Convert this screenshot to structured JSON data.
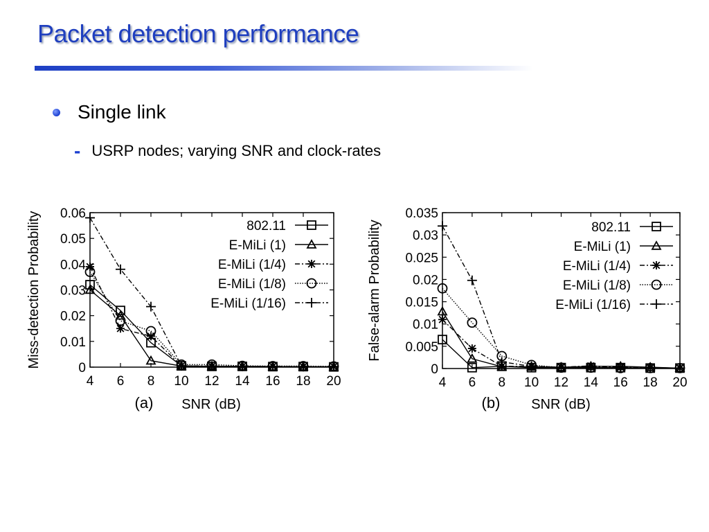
{
  "slide": {
    "title": "Packet detection performance",
    "bullet1": "Single link",
    "bullet2": "USRP nodes; varying SNR and clock-rates"
  },
  "chart_data": [
    {
      "type": "line",
      "panel_label": "(a)",
      "xlabel": "SNR (dB)",
      "ylabel": "Miss-detection Probability",
      "x": [
        4,
        6,
        8,
        10,
        12,
        14,
        16,
        18,
        20
      ],
      "xlim": [
        4,
        20
      ],
      "ylim": [
        0,
        0.06
      ],
      "yticks": [
        "0",
        "0.01",
        "0.02",
        "0.03",
        "0.04",
        "0.05",
        "0.06"
      ],
      "xticks": [
        "4",
        "6",
        "8",
        "10",
        "12",
        "14",
        "16",
        "18",
        "20"
      ],
      "legend_position": "top-right",
      "series": [
        {
          "name": "802.11",
          "marker": "square",
          "line": "solid",
          "values": [
            0.032,
            0.022,
            0.0095,
            0.0005,
            0.0003,
            0.0003,
            0.0002,
            0.0002,
            0.0001
          ]
        },
        {
          "name": "E-MiLi (1)",
          "marker": "triangle",
          "line": "solid",
          "values": [
            0.03,
            0.02,
            0.0025,
            0.0004,
            0.0003,
            0.0003,
            0.0002,
            0.0002,
            0.0001
          ]
        },
        {
          "name": "E-MiLi (1/4)",
          "marker": "star",
          "line": "dashdot",
          "values": [
            0.039,
            0.015,
            0.012,
            0.0005,
            0.0004,
            0.0003,
            0.0003,
            0.0002,
            0.0002
          ]
        },
        {
          "name": "E-MiLi (1/8)",
          "marker": "circle",
          "line": "dotted",
          "values": [
            0.037,
            0.018,
            0.014,
            0.001,
            0.001,
            0.0005,
            0.0004,
            0.0004,
            0.0003
          ]
        },
        {
          "name": "E-MiLi (1/16)",
          "marker": "plus",
          "line": "dashdot",
          "values": [
            0.058,
            0.038,
            0.0235,
            0.0005,
            0.0004,
            0.0003,
            0.0003,
            0.0002,
            0.0002
          ]
        }
      ]
    },
    {
      "type": "line",
      "panel_label": "(b)",
      "xlabel": "SNR (dB)",
      "ylabel": "False-alarm Probability",
      "x": [
        4,
        6,
        8,
        10,
        12,
        14,
        16,
        18,
        20
      ],
      "xlim": [
        4,
        20
      ],
      "ylim": [
        0,
        0.035
      ],
      "yticks": [
        "0",
        "0.005",
        "0.01",
        "0.015",
        "0.02",
        "0.025",
        "0.03",
        "0.035"
      ],
      "xticks": [
        "4",
        "6",
        "8",
        "10",
        "12",
        "14",
        "16",
        "18",
        "20"
      ],
      "legend_position": "top-right",
      "series": [
        {
          "name": "802.11",
          "marker": "square",
          "line": "solid",
          "values": [
            0.0065,
            0.0002,
            0.0005,
            0.0002,
            0.0002,
            0.0002,
            0.0002,
            0.0001,
            0.0001
          ]
        },
        {
          "name": "E-MiLi (1)",
          "marker": "triangle",
          "line": "solid",
          "values": [
            0.0128,
            0.0022,
            0.0004,
            0.0004,
            0.0003,
            0.0005,
            0.0005,
            0.0003,
            0.0001
          ]
        },
        {
          "name": "E-MiLi (1/4)",
          "marker": "star",
          "line": "dashdot",
          "values": [
            0.011,
            0.0045,
            0.0005,
            0.0005,
            0.0003,
            0.0006,
            0.0003,
            0.0002,
            0.0001
          ]
        },
        {
          "name": "E-MiLi (1/8)",
          "marker": "circle",
          "line": "dotted",
          "values": [
            0.018,
            0.0103,
            0.0028,
            0.0008,
            0.0002,
            0.0002,
            0.0001,
            0.0001,
            0.0001
          ]
        },
        {
          "name": "E-MiLi (1/16)",
          "marker": "plus",
          "line": "dashdot",
          "values": [
            0.032,
            0.0198,
            0.0015,
            0.0005,
            0.0003,
            0.0003,
            0.0003,
            0.0002,
            0.0001
          ]
        }
      ]
    }
  ]
}
